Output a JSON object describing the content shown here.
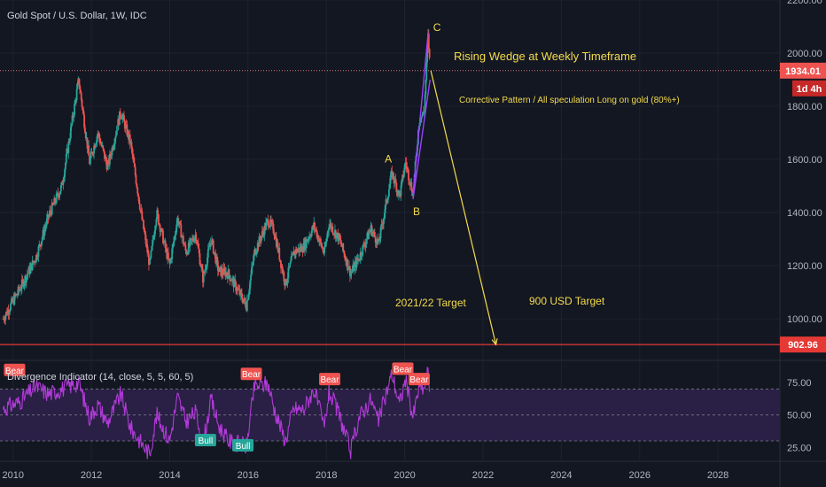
{
  "header": {
    "symbol": "Gold Spot / U.S. Dollar, 1W, IDC"
  },
  "colors": {
    "background": "#131722",
    "grid": "#1e222d",
    "bull_candle": "#26a69a",
    "bear_candle": "#ef5350",
    "annotation": "#f5dc4b",
    "wedge": "#9b40ff",
    "indicator_line": "#b13bd8",
    "indicator_band": "#2a1f45",
    "target_line": "#e53935",
    "price_line": "#e57373"
  },
  "chart_data": [
    {
      "type": "candlestick",
      "title": "Gold Spot / U.S. Dollar, 1W, IDC",
      "x_axis": {
        "type": "date",
        "range": [
          "2009-09-01",
          "2029-08-01"
        ],
        "tick_labels": [
          "2010",
          "2012",
          "2014",
          "2016",
          "2018",
          "2020",
          "2022",
          "2024",
          "2026",
          "2028"
        ]
      },
      "y_axis": {
        "range": [
          850,
          2200
        ],
        "position": "right",
        "tick_values": [
          1000,
          1200,
          1400,
          1600,
          1800,
          2000,
          2200
        ],
        "tick_labels": [
          "1000.00",
          "1200.00",
          "1400.00",
          "1600.00",
          "1800.00",
          "2000.00",
          "2200.00"
        ]
      },
      "grid": true,
      "series_close": [
        [
          "2009-10-01",
          1000
        ],
        [
          "2010-03-01",
          1110
        ],
        [
          "2010-08-01",
          1230
        ],
        [
          "2010-12-01",
          1390
        ],
        [
          "2011-04-01",
          1500
        ],
        [
          "2011-09-05",
          1900
        ],
        [
          "2011-12-15",
          1590
        ],
        [
          "2012-03-01",
          1700
        ],
        [
          "2012-06-01",
          1570
        ],
        [
          "2012-10-01",
          1780
        ],
        [
          "2013-01-01",
          1660
        ],
        [
          "2013-04-15",
          1380
        ],
        [
          "2013-06-28",
          1200
        ],
        [
          "2013-09-01",
          1400
        ],
        [
          "2013-12-31",
          1200
        ],
        [
          "2014-03-15",
          1380
        ],
        [
          "2014-06-01",
          1250
        ],
        [
          "2014-09-01",
          1320
        ],
        [
          "2014-11-07",
          1150
        ],
        [
          "2015-01-22",
          1300
        ],
        [
          "2015-04-01",
          1180
        ],
        [
          "2015-07-01",
          1170
        ],
        [
          "2015-12-17",
          1050
        ],
        [
          "2016-03-01",
          1250
        ],
        [
          "2016-07-06",
          1370
        ],
        [
          "2016-09-01",
          1330
        ],
        [
          "2016-12-15",
          1130
        ],
        [
          "2017-03-01",
          1250
        ],
        [
          "2017-06-01",
          1270
        ],
        [
          "2017-09-08",
          1350
        ],
        [
          "2017-12-12",
          1245
        ],
        [
          "2018-01-25",
          1360
        ],
        [
          "2018-05-01",
          1300
        ],
        [
          "2018-08-16",
          1170
        ],
        [
          "2018-11-01",
          1230
        ],
        [
          "2019-02-20",
          1340
        ],
        [
          "2019-05-01",
          1280
        ],
        [
          "2019-09-04",
          1550
        ],
        [
          "2019-11-15",
          1460
        ],
        [
          "2020-01-08",
          1590
        ],
        [
          "2020-03-19",
          1470
        ],
        [
          "2020-05-15",
          1745
        ],
        [
          "2020-07-01",
          1780
        ],
        [
          "2020-08-07",
          2070
        ],
        [
          "2020-08-25",
          1934
        ]
      ],
      "annotations": {
        "waves": [
          {
            "label": "A",
            "date": "2019-09-04",
            "price": 1555
          },
          {
            "label": "B",
            "date": "2020-03-19",
            "price": 1450
          },
          {
            "label": "C",
            "date": "2020-08-07",
            "price": 2070
          }
        ],
        "texts": {
          "pattern": "Rising Wedge at Weekly Timeframe",
          "note": "Corrective Pattern / All speculation Long on gold (80%+)",
          "target_period": "2021/22 Target",
          "target_price": "900 USD Target"
        },
        "projection": {
          "from": [
            "2020-09-01",
            1934
          ],
          "to": [
            "2022-05-01",
            902.96
          ]
        },
        "wedge": {
          "upper": [
            [
              "2020-03-19",
              1470
            ],
            [
              "2020-08-07",
              2075
            ]
          ],
          "lower": [
            [
              "2020-03-19",
              1450
            ],
            [
              "2020-08-25",
              1900
            ]
          ]
        }
      },
      "price_markers": {
        "current": {
          "value": 1934.01,
          "label": "1934.01",
          "countdown": "1d 4h"
        },
        "target": {
          "value": 902.96,
          "label": "902.96"
        }
      }
    },
    {
      "type": "line",
      "title": "Divergence Indicator (14, close, 5, 5, 60, 5)",
      "y_axis": {
        "range": [
          15,
          90
        ],
        "position": "right",
        "tick_values": [
          25,
          50,
          75
        ],
        "tick_labels": [
          "25.00",
          "50.00",
          "75.00"
        ]
      },
      "bands": {
        "upper": 70,
        "middle": 50,
        "lower": 30
      },
      "series": [
        {
          "values": [
            [
              "2009-10-01",
              55
            ],
            [
              "2010-03-01",
              60
            ],
            [
              "2010-08-01",
              72
            ],
            [
              "2010-12-01",
              66
            ],
            [
              "2011-04-01",
              70
            ],
            [
              "2011-09-05",
              75
            ],
            [
              "2011-12-15",
              48
            ],
            [
              "2012-03-01",
              58
            ],
            [
              "2012-06-01",
              44
            ],
            [
              "2012-10-01",
              66
            ],
            [
              "2013-01-01",
              40
            ],
            [
              "2013-04-15",
              28
            ],
            [
              "2013-06-28",
              20
            ],
            [
              "2013-09-01",
              50
            ],
            [
              "2013-12-31",
              30
            ],
            [
              "2014-03-15",
              64
            ],
            [
              "2014-06-01",
              45
            ],
            [
              "2014-09-01",
              52
            ],
            [
              "2014-11-07",
              28
            ],
            [
              "2015-01-22",
              62
            ],
            [
              "2015-04-01",
              42
            ],
            [
              "2015-07-01",
              30
            ],
            [
              "2015-12-17",
              26
            ],
            [
              "2016-03-01",
              72
            ],
            [
              "2016-07-06",
              74
            ],
            [
              "2016-09-01",
              55
            ],
            [
              "2016-12-15",
              30
            ],
            [
              "2017-03-01",
              55
            ],
            [
              "2017-06-01",
              54
            ],
            [
              "2017-09-08",
              70
            ],
            [
              "2017-12-12",
              40
            ],
            [
              "2018-01-25",
              68
            ],
            [
              "2018-05-01",
              50
            ],
            [
              "2018-08-16",
              22
            ],
            [
              "2018-11-01",
              48
            ],
            [
              "2019-02-20",
              62
            ],
            [
              "2019-05-01",
              45
            ],
            [
              "2019-09-04",
              82
            ],
            [
              "2019-11-15",
              58
            ],
            [
              "2020-01-08",
              78
            ],
            [
              "2020-03-19",
              48
            ],
            [
              "2020-05-15",
              72
            ],
            [
              "2020-07-01",
              70
            ],
            [
              "2020-08-07",
              84
            ],
            [
              "2020-08-25",
              66
            ]
          ]
        }
      ],
      "signals": [
        {
          "label": "Bear",
          "date": "2010-01-15",
          "value": 84
        },
        {
          "label": "Bear",
          "date": "2016-02-01",
          "value": 81
        },
        {
          "label": "Bear",
          "date": "2018-02-01",
          "value": 77
        },
        {
          "label": "Bear",
          "date": "2019-12-15",
          "value": 85
        },
        {
          "label": "Bear",
          "date": "2020-05-15",
          "value": 77
        },
        {
          "label": "Bull",
          "date": "2014-12-01",
          "value": 30
        },
        {
          "label": "Bull",
          "date": "2015-11-15",
          "value": 26
        }
      ]
    }
  ]
}
